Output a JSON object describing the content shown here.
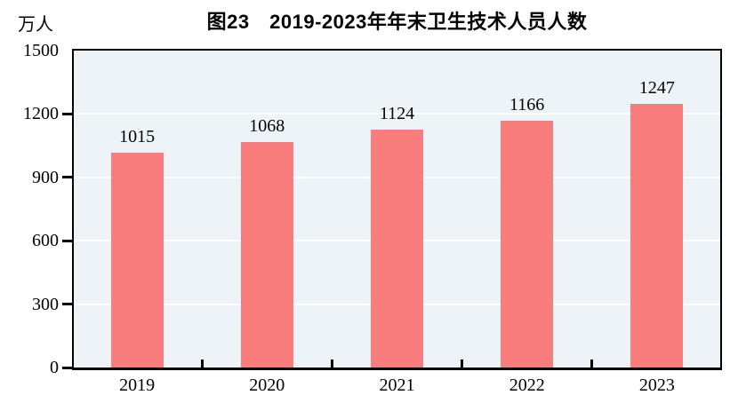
{
  "chart_data": {
    "type": "bar",
    "title": "图23　2019-2023年年末卫生技术人员人数",
    "unit_label": "万人",
    "categories": [
      "2019",
      "2020",
      "2021",
      "2022",
      "2023"
    ],
    "values": [
      1015,
      1068,
      1124,
      1166,
      1247
    ],
    "value_labels": [
      "1015",
      "1068",
      "1124",
      "1166",
      "1247"
    ],
    "xlabel": "",
    "ylabel": "万人",
    "ylim": [
      0,
      1500
    ],
    "yticks": [
      0,
      300,
      600,
      900,
      1200,
      1500
    ],
    "ytick_labels": [
      "0",
      "300",
      "600",
      "900",
      "1200",
      "1500"
    ],
    "grid": true,
    "legend_position": "none",
    "colors": {
      "bar": "#FA7D7D",
      "plot_background": "#EDF3F6",
      "gridline": "#FFFFFF",
      "axis": "#000000",
      "text": "#000000"
    }
  }
}
